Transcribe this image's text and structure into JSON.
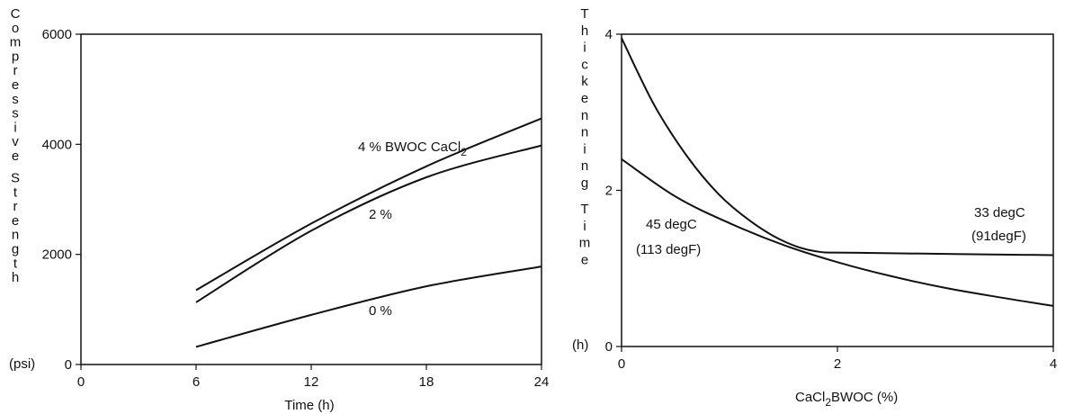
{
  "chart_data": [
    {
      "type": "line",
      "title": "",
      "xlabel": "Time (h)",
      "ylabel": "Compressive Strength",
      "ylabel_unit": "(psi)",
      "xlim": [
        0,
        24
      ],
      "ylim": [
        0,
        6000
      ],
      "x_ticks": [
        "0",
        "6",
        "12",
        "18",
        "24"
      ],
      "y_ticks": [
        "0",
        "2000",
        "4000",
        "6000"
      ],
      "series": [
        {
          "name": "4 % BWOC CaCl",
          "name_sub": "2",
          "x": [
            6,
            12,
            18,
            24
          ],
          "y": [
            1350,
            2560,
            3600,
            4470
          ]
        },
        {
          "name": "2 %",
          "x": [
            6,
            12,
            18,
            24
          ],
          "y": [
            1130,
            2430,
            3400,
            3980
          ]
        },
        {
          "name": "0 %",
          "x": [
            6,
            12,
            18,
            24
          ],
          "y": [
            320,
            900,
            1420,
            1780
          ]
        }
      ]
    },
    {
      "type": "line",
      "title": "",
      "xlabel_pre": "CaCl",
      "xlabel_sub": "2",
      "xlabel_post": "BWOC (%)",
      "ylabel": "Thickenning Time",
      "ylabel_unit": "(h)",
      "xlim": [
        0,
        4
      ],
      "ylim": [
        0,
        4
      ],
      "x_ticks": [
        "0",
        "2",
        "4"
      ],
      "y_ticks": [
        "0",
        "2",
        "4"
      ],
      "series": [
        {
          "name": "33 degC",
          "name2": "(91degF)",
          "x": [
            0,
            0.3,
            0.6,
            0.9,
            1.2,
            1.5,
            1.8,
            2.2,
            4
          ],
          "y": [
            3.95,
            3.1,
            2.45,
            1.95,
            1.6,
            1.35,
            1.22,
            1.2,
            1.17
          ]
        },
        {
          "name": "45 degC",
          "name2": "(113 degF)",
          "x": [
            0,
            0.5,
            1,
            1.5,
            2,
            2.5,
            3,
            3.5,
            4
          ],
          "y": [
            2.4,
            1.92,
            1.58,
            1.3,
            1.08,
            0.9,
            0.75,
            0.63,
            0.52
          ]
        }
      ]
    }
  ]
}
